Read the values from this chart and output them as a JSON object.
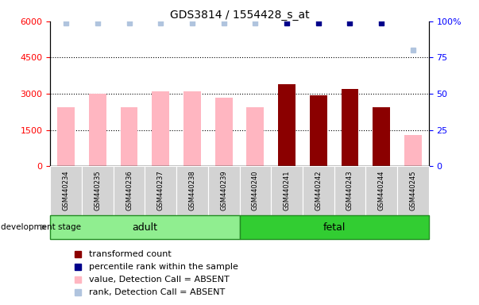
{
  "title": "GDS3814 / 1554428_s_at",
  "categories": [
    "GSM440234",
    "GSM440235",
    "GSM440236",
    "GSM440237",
    "GSM440238",
    "GSM440239",
    "GSM440240",
    "GSM440241",
    "GSM440242",
    "GSM440243",
    "GSM440244",
    "GSM440245"
  ],
  "bar_values": [
    2450,
    3000,
    2450,
    3100,
    3100,
    2850,
    2450,
    3400,
    2950,
    3200,
    2450,
    1300
  ],
  "bar_colors": [
    "#FFB6C1",
    "#FFB6C1",
    "#FFB6C1",
    "#FFB6C1",
    "#FFB6C1",
    "#FFB6C1",
    "#FFB6C1",
    "#8B0000",
    "#8B0000",
    "#8B0000",
    "#8B0000",
    "#FFB6C1"
  ],
  "rank_values": [
    99,
    99,
    99,
    99,
    99,
    99,
    99,
    99,
    99,
    99,
    99,
    80
  ],
  "rank_colors": [
    "#B0C4DE",
    "#B0C4DE",
    "#B0C4DE",
    "#B0C4DE",
    "#B0C4DE",
    "#B0C4DE",
    "#B0C4DE",
    "#00008B",
    "#00008B",
    "#00008B",
    "#00008B",
    "#B0C4DE"
  ],
  "ylim_left": [
    0,
    6000
  ],
  "ylim_right": [
    0,
    100
  ],
  "yticks_left": [
    0,
    1500,
    3000,
    4500,
    6000
  ],
  "yticks_right": [
    0,
    25,
    50,
    75,
    100
  ],
  "ytick_labels_left": [
    "0",
    "1500",
    "3000",
    "4500",
    "6000"
  ],
  "ytick_labels_right": [
    "0",
    "25",
    "50",
    "75",
    "100%"
  ],
  "adult_indices": [
    0,
    1,
    2,
    3,
    4,
    5
  ],
  "fetal_indices": [
    6,
    7,
    8,
    9,
    10,
    11
  ],
  "adult_color": "#90EE90",
  "fetal_color": "#32CD32",
  "group_edge_color": "#228B22",
  "legend_items": [
    {
      "label": "transformed count",
      "color": "#8B0000"
    },
    {
      "label": "percentile rank within the sample",
      "color": "#00008B"
    },
    {
      "label": "value, Detection Call = ABSENT",
      "color": "#FFB6C1"
    },
    {
      "label": "rank, Detection Call = ABSENT",
      "color": "#B0C4DE"
    }
  ],
  "bar_width": 0.55,
  "gray_box_color": "#D3D3D3",
  "grid_color": "black",
  "left_axis_color": "red",
  "right_axis_color": "blue"
}
